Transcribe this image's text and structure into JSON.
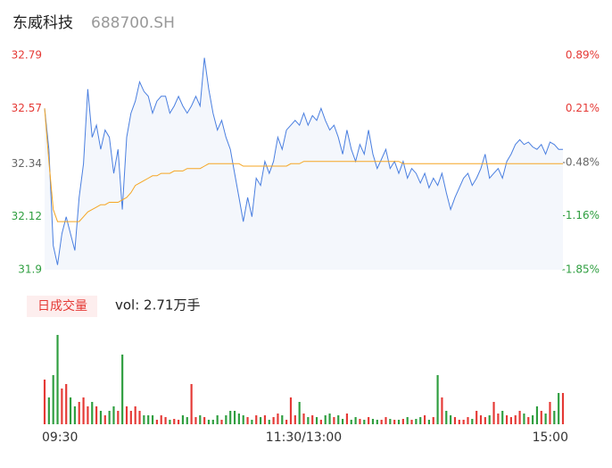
{
  "chart_data": {
    "type": "line",
    "title": "东威科技",
    "code": "688700.SH",
    "ylim": [
      31.9,
      32.79
    ],
    "yticks": [
      32.79,
      32.57,
      32.34,
      32.12,
      31.9
    ],
    "ytick_colors": [
      "#e53935",
      "#e53935",
      "#666666",
      "#2e9e3f",
      "#2e9e3f"
    ],
    "y2lim": [
      -1.85,
      0.89
    ],
    "y2ticks": [
      {
        "value": 0.89,
        "label": "0.89%"
      },
      {
        "value": 0.21,
        "label": "0.21%"
      },
      {
        "value": -0.48,
        "label": "-0.48%"
      },
      {
        "value": -1.16,
        "label": "-1.16%"
      },
      {
        "value": -1.85,
        "label": "-1.85%"
      }
    ],
    "xlim": [
      0,
      120
    ],
    "xticks": [
      {
        "value": 0,
        "label": "09:30"
      },
      {
        "value": 60,
        "label": "11:30/13:00"
      },
      {
        "value": 120,
        "label": "15:00"
      }
    ],
    "series": [
      {
        "color": "#4a7fe0",
        "values": [
          32.57,
          32.4,
          32.0,
          31.92,
          32.05,
          32.12,
          32.05,
          31.98,
          32.2,
          32.34,
          32.65,
          32.45,
          32.5,
          32.4,
          32.48,
          32.45,
          32.3,
          32.4,
          32.15,
          32.45,
          32.55,
          32.6,
          32.68,
          32.64,
          32.62,
          32.55,
          32.6,
          32.62,
          32.62,
          32.55,
          32.58,
          32.62,
          32.58,
          32.55,
          32.58,
          32.62,
          32.58,
          32.78,
          32.65,
          32.55,
          32.48,
          32.52,
          32.45,
          32.4,
          32.3,
          32.2,
          32.1,
          32.2,
          32.12,
          32.28,
          32.25,
          32.35,
          32.3,
          32.35,
          32.45,
          32.4,
          32.48,
          32.5,
          32.52,
          32.5,
          32.55,
          32.5,
          32.54,
          32.52,
          32.57,
          32.52,
          32.48,
          32.5,
          32.45,
          32.38,
          32.48,
          32.4,
          32.35,
          32.42,
          32.38,
          32.48,
          32.38,
          32.32,
          32.36,
          32.4,
          32.32,
          32.35,
          32.3,
          32.35,
          32.28,
          32.32,
          32.3,
          32.26,
          32.3,
          32.24,
          32.28,
          32.25,
          32.3,
          32.22,
          32.15,
          32.2,
          32.24,
          32.28,
          32.3,
          32.25,
          32.28,
          32.32,
          32.38,
          32.28,
          32.3,
          32.32,
          32.28,
          32.35,
          32.38,
          32.42,
          32.44,
          32.42,
          32.43,
          32.41,
          32.4,
          32.42,
          32.38,
          32.43,
          32.42,
          32.4,
          32.4
        ]
      },
      {
        "color": "#f5a623",
        "values": [
          32.57,
          32.35,
          32.15,
          32.1,
          32.1,
          32.1,
          32.1,
          32.1,
          32.1,
          32.12,
          32.14,
          32.15,
          32.16,
          32.17,
          32.17,
          32.18,
          32.18,
          32.18,
          32.19,
          32.2,
          32.22,
          32.25,
          32.26,
          32.27,
          32.28,
          32.29,
          32.29,
          32.3,
          32.3,
          32.3,
          32.31,
          32.31,
          32.31,
          32.32,
          32.32,
          32.32,
          32.32,
          32.33,
          32.34,
          32.34,
          32.34,
          32.34,
          32.34,
          32.34,
          32.34,
          32.34,
          32.33,
          32.33,
          32.33,
          32.33,
          32.33,
          32.33,
          32.33,
          32.33,
          32.33,
          32.33,
          32.33,
          32.34,
          32.34,
          32.34,
          32.35,
          32.35,
          32.35,
          32.35,
          32.35,
          32.35,
          32.35,
          32.35,
          32.35,
          32.35,
          32.35,
          32.35,
          32.35,
          32.35,
          32.35,
          32.35,
          32.35,
          32.35,
          32.35,
          32.35,
          32.35,
          32.35,
          32.35,
          32.34,
          32.34,
          32.34,
          32.34,
          32.34,
          32.34,
          32.34,
          32.34,
          32.34,
          32.34,
          32.34,
          32.34,
          32.34,
          32.34,
          32.34,
          32.34,
          32.34,
          32.34,
          32.34,
          32.34,
          32.34,
          32.34,
          32.34,
          32.34,
          32.34,
          32.34,
          32.34,
          32.34,
          32.34,
          32.34,
          32.34,
          32.34,
          32.34,
          32.34,
          32.34,
          32.34,
          32.34,
          32.34
        ]
      }
    ],
    "fill_color": "#f4f7fc",
    "volume": {
      "label": "日成交量",
      "summary": "vol: 2.71万手",
      "up_color": "#e53935",
      "down_color": "#2e9e3f",
      "ylim": [
        0,
        105
      ],
      "values": [
        50,
        30,
        55,
        100,
        40,
        45,
        30,
        20,
        25,
        30,
        20,
        25,
        20,
        15,
        10,
        15,
        20,
        15,
        78,
        20,
        15,
        20,
        15,
        10,
        10,
        10,
        5,
        10,
        8,
        5,
        6,
        5,
        10,
        8,
        45,
        8,
        10,
        8,
        5,
        5,
        10,
        5,
        10,
        15,
        15,
        12,
        10,
        8,
        5,
        10,
        8,
        10,
        5,
        8,
        12,
        10,
        5,
        30,
        10,
        25,
        12,
        8,
        10,
        8,
        5,
        10,
        12,
        8,
        10,
        6,
        12,
        5,
        8,
        6,
        5,
        8,
        6,
        5,
        5,
        8,
        6,
        5,
        5,
        6,
        8,
        5,
        6,
        8,
        10,
        5,
        8,
        55,
        30,
        15,
        10,
        8,
        5,
        5,
        8,
        6,
        15,
        10,
        8,
        10,
        25,
        12,
        15,
        10,
        8,
        10,
        15,
        12,
        8,
        10,
        20,
        15,
        12,
        25,
        15,
        35,
        35
      ]
    }
  }
}
